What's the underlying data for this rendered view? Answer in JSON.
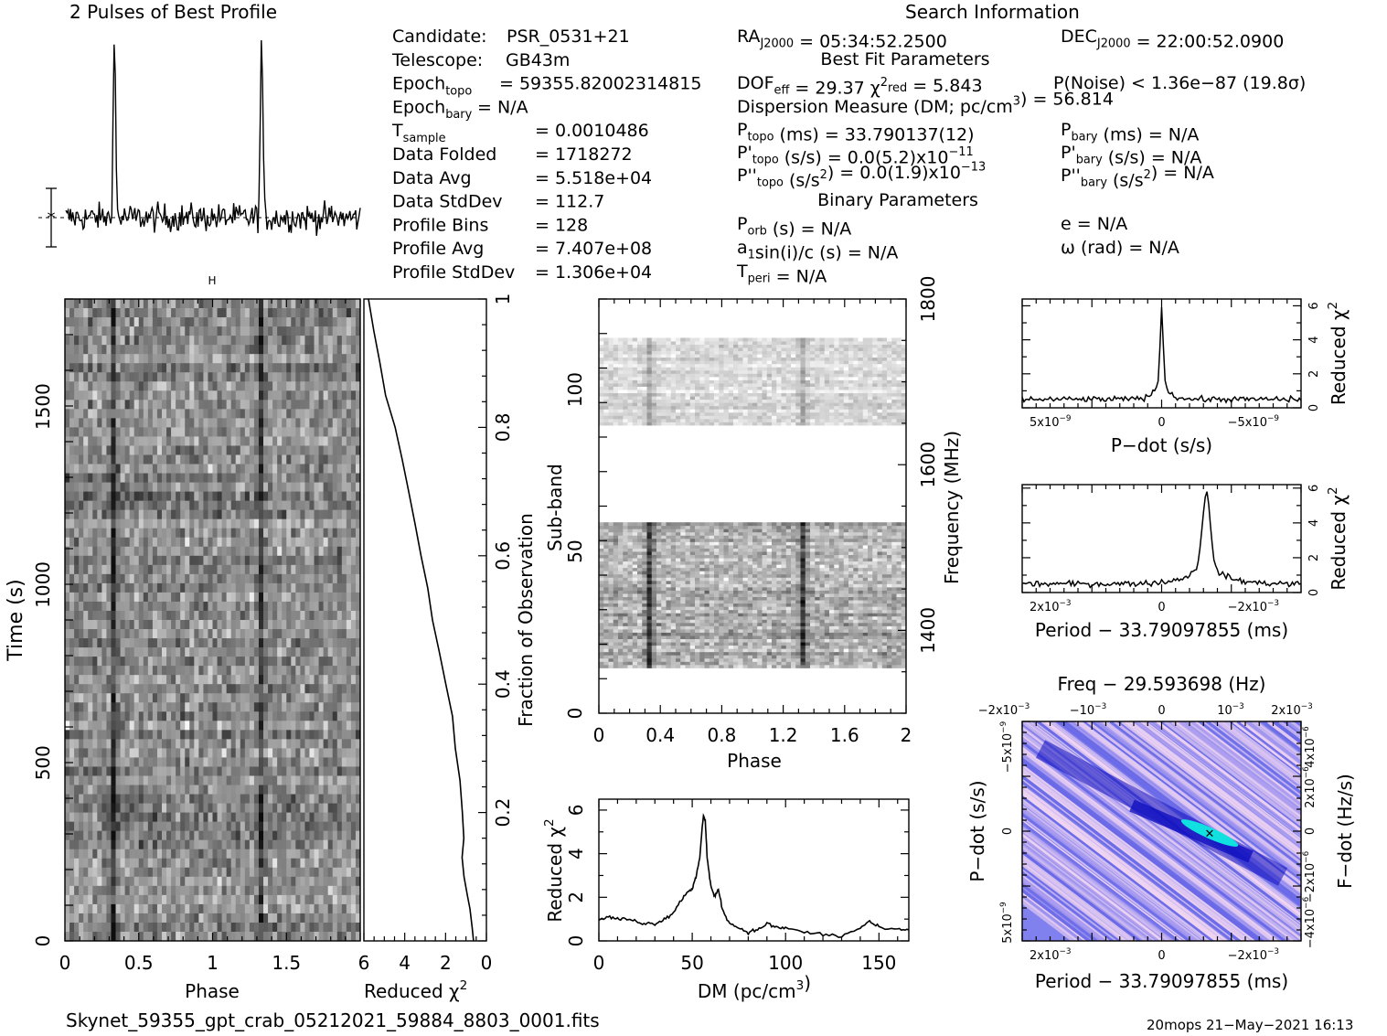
{
  "top_profile": {
    "title": "2 Pulses of Best Profile"
  },
  "search_info": {
    "heading": "Search Information",
    "left_rows": [
      {
        "label": "Candidate:",
        "value": "PSR_0531+21"
      },
      {
        "label": "Telescope:",
        "value": "GB43m"
      },
      {
        "label": "Epoch",
        "sub": "topo",
        "value": "= 59355.82002314815"
      },
      {
        "label": "Epoch",
        "sub": "bary",
        "value": "= N/A"
      },
      {
        "label": "T",
        "sub": "sample",
        "value": "=   0.0010486"
      },
      {
        "label": "Data Folded",
        "value": "=   1718272"
      },
      {
        "label": "Data Avg",
        "value": "=   5.518e+04"
      },
      {
        "label": "Data StdDev",
        "value": "=   112.7"
      },
      {
        "label": "Profile Bins",
        "value": "=   128"
      },
      {
        "label": "Profile Avg",
        "value": "=   7.407e+08"
      },
      {
        "label": "Profile StdDev",
        "value": "=   1.306e+04"
      }
    ],
    "ra": "RA",
    "ra_sub": "J2000",
    "ra_value": "= 05:34:52.2500",
    "dec": "DEC",
    "dec_sub": "J2000",
    "dec_value": "= 22:00:52.0900",
    "best_fit_heading": "Best Fit Parameters",
    "dof": "DOF",
    "dof_sub": "eff",
    "dof_value": "= 29.37",
    "chi": "χ",
    "chi_sup": "2",
    "chi_sub": "red",
    "chi_value": "= 5.843",
    "pnoise": "P(Noise) < 1.36e−87   (19.8σ)",
    "dm_line": "Dispersion Measure (DM; pc/cm",
    "dm_sup": "3",
    "dm_value": ") = 56.814",
    "ptopo": "P",
    "ptopo_sub": "topo",
    "ptopo_value": "(ms) =  33.790137(12)",
    "pbary": "P",
    "pbary_sub": "bary",
    "pbary_value": "(ms) = N/A",
    "pdtopo": "P'",
    "pdtopo_sub": "topo",
    "pdtopo_value": "(s/s) = 0.0(5.2)x10",
    "pdtopo_exp": "−11",
    "pdbary": "P'",
    "pdbary_sub": "bary",
    "pdbary_value": "(s/s) = N/A",
    "pddtopo": "P''",
    "pddtopo_sub": "topo",
    "pddtopo_value": "(s/s",
    "pddtopo_sup": "2",
    "pddtopo_value2": ") = 0.0(1.9)x10",
    "pddtopo_exp": "−13",
    "pddbary": "P''",
    "pddbary_sub": "bary",
    "pddbary_value": "(s/s",
    "pddbary_sup": "2",
    "pddbary_value2": ") = N/A",
    "binary_heading": "Binary Parameters",
    "porb": "P",
    "porb_sub": "orb",
    "porb_value": "(s) = N/A",
    "e_value": "e = N/A",
    "a1": "a",
    "a1_sub": "1",
    "a1_value": "sin(i)/c (s) = N/A",
    "omega_value": "ω (rad) = N/A",
    "tperi": "T",
    "tperi_sub": "peri",
    "tperi_value": "= N/A"
  },
  "footer": {
    "filename": "Skynet_59355_gpt_crab_05212021_59884_8803_0001.fits",
    "stamp": "20mops 21−May−2021 16:13"
  },
  "colors": {
    "ink": "#000000",
    "background": "#ffffff",
    "ppdot_low": "#f2d6f2",
    "ppdot_mid": "#8080ee",
    "ppdot_high": "#1010c0",
    "ppdot_peak": "#10e0e0"
  },
  "chart_data": [
    {
      "id": "profile",
      "type": "line",
      "title": "2 Pulses of Best Profile",
      "x_range": [
        0,
        2
      ],
      "peaks_at_phase": [
        0.33,
        1.33
      ],
      "note_marker": "*"
    },
    {
      "id": "time_phase",
      "type": "heatmap",
      "xlabel": "Phase",
      "ylabel": "Time (s)",
      "xlim": [
        0,
        2
      ],
      "ylim": [
        0,
        1802
      ],
      "x_ticks": [
        "0",
        "0.5",
        "1",
        "1.5"
      ],
      "y_ticks": [
        "0",
        "500",
        "1000",
        "1500"
      ],
      "pulse_phase": [
        0.33,
        1.33
      ]
    },
    {
      "id": "time_chi2",
      "type": "line",
      "xlabel": "Reduced χ",
      "xlabel_sup": "2",
      "ylabel": "Fraction of Observation",
      "xlim": [
        6,
        0
      ],
      "ylim": [
        0,
        1
      ],
      "x_ticks": [
        "6",
        "4",
        "2",
        "0"
      ],
      "y_ticks": [
        "0.2",
        "0.4",
        "0.6",
        "0.8",
        "1"
      ],
      "points": [
        [
          0.6,
          0.0
        ],
        [
          0.7,
          0.02
        ],
        [
          0.8,
          0.05
        ],
        [
          0.9,
          0.07
        ],
        [
          1.1,
          0.1
        ],
        [
          1.2,
          0.13
        ],
        [
          1.1,
          0.16
        ],
        [
          1.2,
          0.2
        ],
        [
          1.3,
          0.25
        ],
        [
          1.5,
          0.3
        ],
        [
          1.7,
          0.35
        ],
        [
          2.0,
          0.4
        ],
        [
          2.3,
          0.45
        ],
        [
          2.6,
          0.5
        ],
        [
          2.9,
          0.55
        ],
        [
          3.2,
          0.6
        ],
        [
          3.5,
          0.65
        ],
        [
          3.8,
          0.7
        ],
        [
          4.1,
          0.75
        ],
        [
          4.5,
          0.8
        ],
        [
          4.9,
          0.85
        ],
        [
          5.2,
          0.9
        ],
        [
          5.5,
          0.95
        ],
        [
          5.8,
          1.0
        ]
      ]
    },
    {
      "id": "subband_phase",
      "type": "heatmap",
      "xlabel": "Phase",
      "ylabel": "Sub-band",
      "ylabel_right": "Frequency (MHz)",
      "xlim": [
        0,
        2
      ],
      "ylim": [
        0,
        128
      ],
      "x_ticks": [
        "0",
        "0.4",
        "0.8",
        "1.2",
        "1.6",
        "2"
      ],
      "y_ticks": [
        "0",
        "50",
        "100"
      ],
      "freq_ticks": [
        "1400",
        "1600",
        "1800"
      ],
      "freq_range": [
        1300,
        1800
      ],
      "band_ranges": [
        [
          14,
          59
        ],
        [
          89,
          116
        ]
      ],
      "pulse_phase": [
        0.33,
        1.33
      ]
    },
    {
      "id": "dm_chi2",
      "type": "line",
      "xlabel": "DM (pc/cm",
      "xlabel_sup": "3",
      "xlabel_end": ")",
      "ylabel": "Reduced χ",
      "ylabel_sup": "2",
      "xlim": [
        0,
        166
      ],
      "ylim": [
        0,
        6.5
      ],
      "x_ticks": [
        "0",
        "50",
        "100",
        "150"
      ],
      "y_ticks": [
        "0",
        "2",
        "4",
        "6"
      ],
      "points": [
        [
          0,
          1.0
        ],
        [
          5,
          1.1
        ],
        [
          10,
          1.0
        ],
        [
          15,
          1.0
        ],
        [
          20,
          0.9
        ],
        [
          25,
          0.8
        ],
        [
          30,
          0.8
        ],
        [
          35,
          1.0
        ],
        [
          40,
          1.3
        ],
        [
          45,
          2.0
        ],
        [
          48,
          2.3
        ],
        [
          50,
          2.4
        ],
        [
          52,
          2.9
        ],
        [
          54,
          3.8
        ],
        [
          56,
          5.8
        ],
        [
          57,
          5.5
        ],
        [
          58,
          3.8
        ],
        [
          60,
          2.5
        ],
        [
          62,
          2.0
        ],
        [
          64,
          2.4
        ],
        [
          66,
          1.5
        ],
        [
          70,
          0.8
        ],
        [
          75,
          0.6
        ],
        [
          80,
          0.4
        ],
        [
          85,
          0.5
        ],
        [
          90,
          0.8
        ],
        [
          95,
          0.6
        ],
        [
          100,
          0.6
        ],
        [
          110,
          0.4
        ],
        [
          120,
          0.3
        ],
        [
          130,
          0.2
        ],
        [
          140,
          0.6
        ],
        [
          145,
          0.9
        ],
        [
          150,
          0.6
        ],
        [
          160,
          0.5
        ],
        [
          166,
          0.5
        ]
      ]
    },
    {
      "id": "pdot_chi2",
      "type": "line",
      "xlabel": "P−dot (s/s)",
      "ylabel": "Reduced χ",
      "ylabel_sup": "2",
      "xlim": [
        5e-09,
        -5e-09
      ],
      "ylim": [
        0,
        6.4
      ],
      "x_ticks": [
        "5x10",
        "0",
        "−5x10"
      ],
      "x_tick_exp": "−9",
      "y_ticks": [
        "0",
        "2",
        "4",
        "6"
      ],
      "peak_x": 0,
      "peak_y": 5.8
    },
    {
      "id": "period_chi2",
      "type": "line",
      "xlabel": "Period − 33.79097855 (ms)",
      "ylabel": "Reduced χ",
      "ylabel_sup": "2",
      "xlim": [
        0.0025,
        -0.0025
      ],
      "ylim": [
        0,
        6.2
      ],
      "x_ticks": [
        "2x10",
        "0",
        "−2x10"
      ],
      "x_tick_exp": "−3",
      "y_ticks": [
        "0",
        "2",
        "4",
        "6"
      ],
      "peak_x": -0.0008,
      "peak_y": 5.8
    },
    {
      "id": "p_pdot",
      "type": "heatmap",
      "title": "Freq − 29.593698 (Hz)",
      "xlabel": "Period − 33.79097855 (ms)",
      "ylabel": "P−dot (s/s)",
      "ylabel_right": "F−dot (Hz/s)",
      "bottom_ticks": [
        "2x10",
        "0",
        "−2x10"
      ],
      "bottom_exp": "−3",
      "top_ticks": [
        "−2x10",
        "−10",
        "0",
        "10",
        "2x10"
      ],
      "top_exp": "−3",
      "left_ticks": [
        "−5x10",
        "0",
        "5x10"
      ],
      "left_exp": "−9",
      "right_ticks": [
        "4x10",
        "2x10",
        "0",
        "−2x10",
        "−4x10"
      ],
      "right_exp": "−6",
      "best_period": -0.0008,
      "best_pdot": 0
    }
  ]
}
